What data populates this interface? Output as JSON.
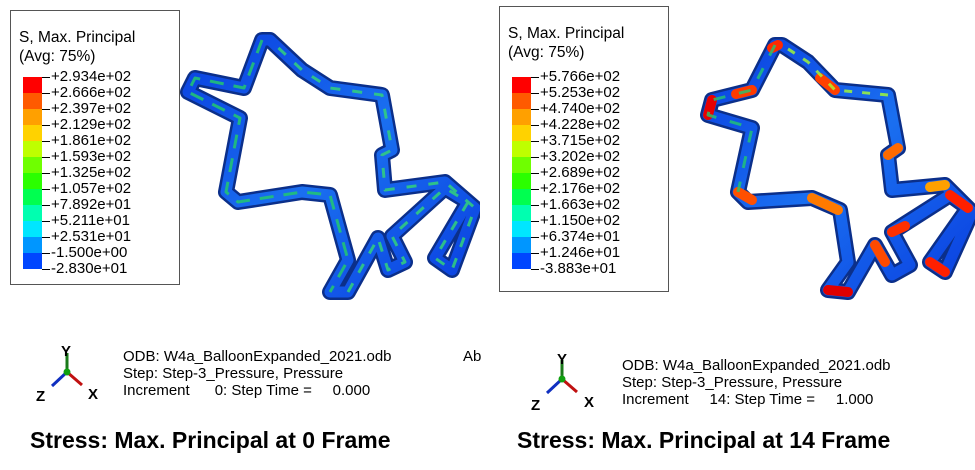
{
  "panels": [
    {
      "legend": {
        "title_line1": "S, Max. Principal",
        "title_line2": "(Avg: 75%)",
        "values": [
          "+2.934e+02",
          "+2.666e+02",
          "+2.397e+02",
          "+2.129e+02",
          "+1.861e+02",
          "+1.593e+02",
          "+1.325e+02",
          "+1.057e+02",
          "+7.892e+01",
          "+5.211e+01",
          "+2.531e+01",
          "-1.500e+00",
          "-2.830e+01"
        ]
      },
      "odb": {
        "line1": "ODB: W4a_BalloonExpanded_2021.odb",
        "line1_extra": "Ab",
        "line2": "Step: Step-3_Pressure, Pressure",
        "line3": "Increment      0: Step Time =     0.000"
      },
      "axes": {
        "y": "Y",
        "x": "X",
        "z": "Z"
      },
      "caption": "Stress: Max. Principal at 0 Frame"
    },
    {
      "legend": {
        "title_line1": "S, Max. Principal",
        "title_line2": "(Avg: 75%)",
        "values": [
          "+5.766e+02",
          "+5.253e+02",
          "+4.740e+02",
          "+4.228e+02",
          "+3.715e+02",
          "+3.202e+02",
          "+2.689e+02",
          "+2.176e+02",
          "+1.663e+02",
          "+1.150e+02",
          "+6.374e+01",
          "+1.246e+01",
          "-3.883e+01"
        ]
      },
      "odb": {
        "line1": "ODB: W4a_BalloonExpanded_2021.odb",
        "line2": "Step: Step-3_Pressure, Pressure",
        "line3": "Increment     14: Step Time =     1.000"
      },
      "axes": {
        "y": "Y",
        "x": "X",
        "z": "Z"
      },
      "caption": "Stress: Max. Principal at 14 Frame"
    }
  ],
  "colormap": [
    "#ff0000",
    "#ff5a00",
    "#ffa000",
    "#ffd200",
    "#bfff00",
    "#6fff00",
    "#2bff00",
    "#00ff50",
    "#00ffb0",
    "#00e6ff",
    "#0096ff",
    "#0046ff",
    "#0000ff"
  ]
}
